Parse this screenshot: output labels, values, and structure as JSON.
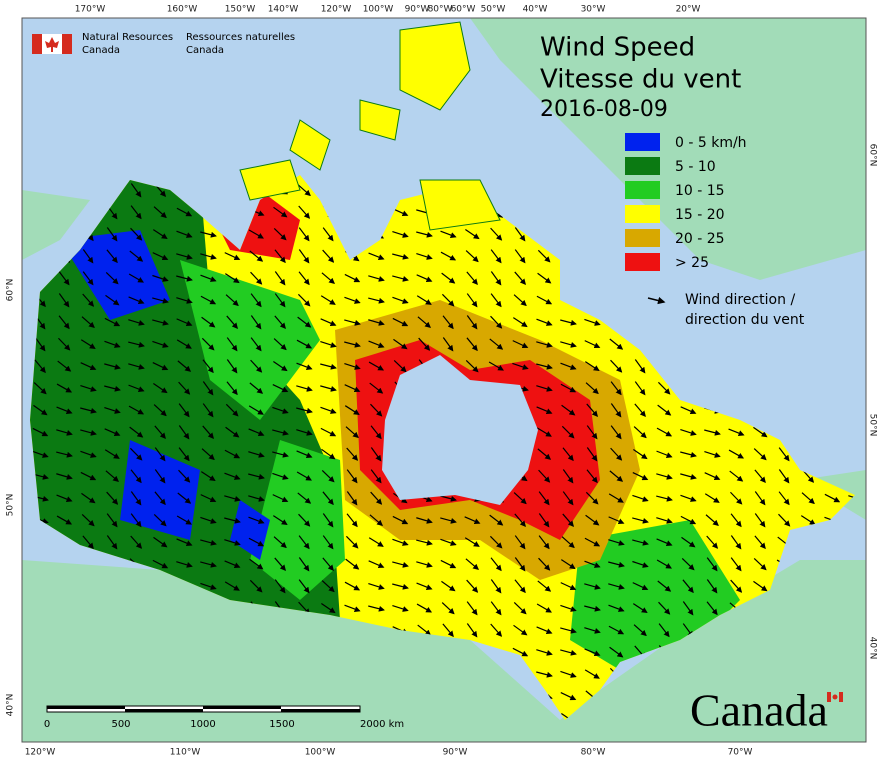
{
  "logo": {
    "en": [
      "Natural Resources",
      "Canada"
    ],
    "fr": [
      "Ressources naturelles",
      "Canada"
    ]
  },
  "title": [
    "Wind Speed",
    "Vitesse du vent"
  ],
  "date": "2016-08-09",
  "legend": {
    "items": [
      {
        "label": "0 - 5 km/h",
        "color": "#0022ee"
      },
      {
        "label": "5 - 10",
        "color": "#0b7a12"
      },
      {
        "label": "10 - 15",
        "color": "#22cc22"
      },
      {
        "label": "15 - 20",
        "color": "#ffff00"
      },
      {
        "label": "20 - 25",
        "color": "#d8a800"
      },
      {
        "label": "> 25",
        "color": "#ee1111"
      }
    ],
    "arrow_label": [
      "Wind direction /",
      "direction du vent"
    ]
  },
  "scale_bar": {
    "labels": [
      "0",
      "500",
      "1000",
      "1500",
      "2000 km"
    ]
  },
  "graticule": {
    "top": [
      "170°W",
      "160°W",
      "150°W",
      "140°W",
      "120°W",
      "100°W",
      "90°W",
      "80°W",
      "60°W",
      "50°W",
      "40°W",
      "30°W",
      "20°W"
    ],
    "bottom": [
      "120°W",
      "110°W",
      "100°W",
      "90°W",
      "80°W",
      "70°W"
    ],
    "left": [
      "60°N",
      "50°N",
      "40°N"
    ],
    "right": [
      "60°N",
      "50°N",
      "40°N"
    ]
  },
  "wordmark": "Canada"
}
